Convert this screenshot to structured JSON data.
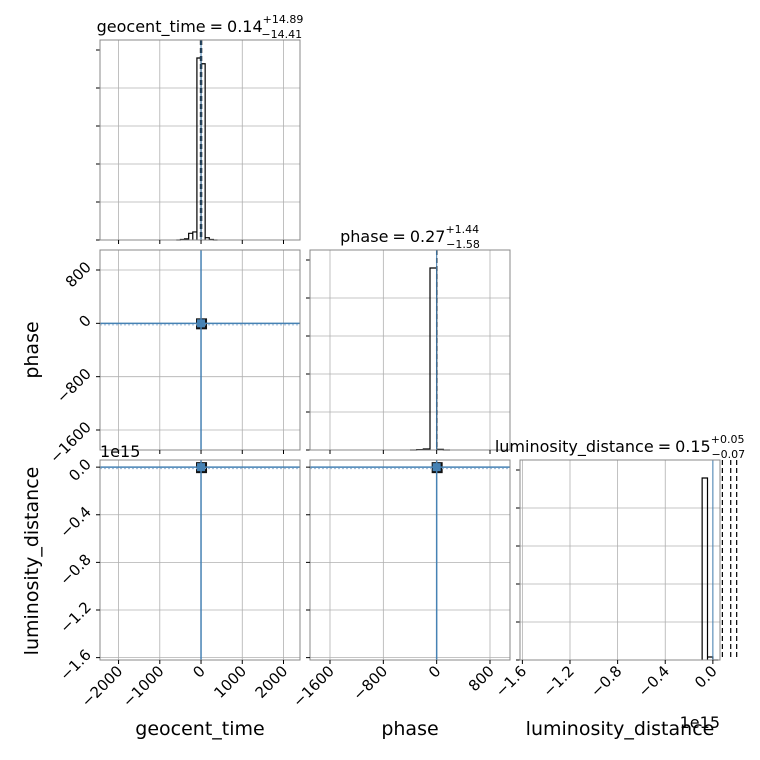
{
  "chart_data": {
    "type": "corner",
    "parameters": [
      "geocent_time",
      "phase",
      "luminosity_distance"
    ],
    "axis_labels": {
      "geocent_time": "geocent_time",
      "phase": "phase",
      "luminosity_distance": "luminosity_distance"
    },
    "offset_text": {
      "luminosity_distance_y": "1e15",
      "luminosity_distance_x": "1e15"
    },
    "titles": {
      "geocent_time": {
        "name": "geocent_time",
        "value": "0.14",
        "plus": "+14.89",
        "minus": "−14.41"
      },
      "phase": {
        "name": "phase",
        "value": "0.27",
        "plus": "+1.44",
        "minus": "−1.58"
      },
      "luminosity_distance": {
        "name": "luminosity_distance",
        "value": "0.15",
        "plus": "+0.05",
        "minus": "−0.07"
      }
    },
    "ranges": {
      "geocent_time": [
        -2450,
        2400
      ],
      "phase": [
        -1900,
        1100
      ],
      "luminosity_distance": [
        -1.62,
        0.06
      ]
    },
    "ticks": {
      "geocent_time": {
        "values": [
          -2000,
          -1000,
          0,
          1000,
          2000
        ],
        "labels": [
          "−2000",
          "−1000",
          "0",
          "1000",
          "2000"
        ]
      },
      "phase": {
        "values": [
          -1600,
          -800,
          0,
          800
        ],
        "labels": [
          "−1600",
          "−800",
          "0",
          "800"
        ]
      },
      "luminosity_distance": {
        "values": [
          -1.6,
          -1.2,
          -0.8,
          -0.4,
          0.0
        ],
        "labels": [
          "−1.6",
          "−1.2",
          "−0.8",
          "−0.4",
          "0.0"
        ]
      }
    },
    "histograms": {
      "geocent_time": {
        "edges": [
          -600,
          -500,
          -400,
          -300,
          -200,
          -100,
          0,
          100,
          200,
          300,
          400
        ],
        "counts": [
          0,
          0.3,
          0.6,
          3.5,
          4.2,
          95,
          92,
          1.2,
          0.3,
          0
        ]
      },
      "phase": {
        "edges": [
          -400,
          -300,
          -200,
          -100,
          0,
          100,
          200
        ],
        "counts": [
          0,
          0.2,
          0.5,
          92,
          0.3,
          0
        ]
      },
      "luminosity_distance": {
        "edges": [
          -0.09,
          -0.045,
          0.0,
          0.045
        ],
        "counts": [
          92,
          1.5,
          0
        ]
      }
    },
    "truths": {
      "geocent_time": 0,
      "phase": 0,
      "luminosity_distance": 0
    },
    "quantile_lines": {
      "geocent_time": [
        -14.27,
        0.14,
        15.03
      ],
      "phase": [
        -1.31,
        0.27,
        1.71
      ],
      "luminosity_distance": [
        0.08,
        0.15,
        0.2
      ]
    },
    "truth_color": "#4682b4",
    "hist_color": "#000000",
    "grid": true
  }
}
